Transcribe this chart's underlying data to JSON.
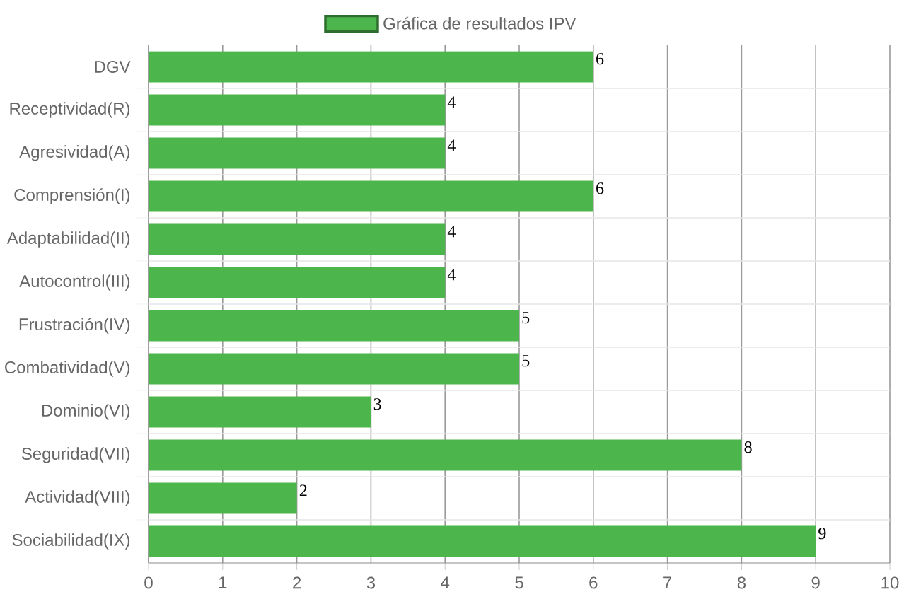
{
  "chart_data": {
    "type": "bar",
    "orientation": "horizontal",
    "categories": [
      "DGV",
      "Receptividad(R)",
      "Agresividad(A)",
      "Comprensión(I)",
      "Adaptabilidad(II)",
      "Autocontrol(III)",
      "Frustración(IV)",
      "Combatividad(V)",
      "Dominio(VI)",
      "Seguridad(VII)",
      "Actividad(VIII)",
      "Sociabilidad(IX)"
    ],
    "series": [
      {
        "name": "Gráfica de resultados IPV",
        "color": "#4cb54c",
        "values": [
          6,
          4,
          4,
          6,
          4,
          4,
          5,
          5,
          3,
          8,
          2,
          9
        ]
      }
    ],
    "xlim": [
      0,
      10
    ],
    "xticks": [
      0,
      1,
      2,
      3,
      4,
      5,
      6,
      7,
      8,
      9,
      10
    ],
    "grid": true,
    "legend": "top",
    "data_labels": true
  }
}
